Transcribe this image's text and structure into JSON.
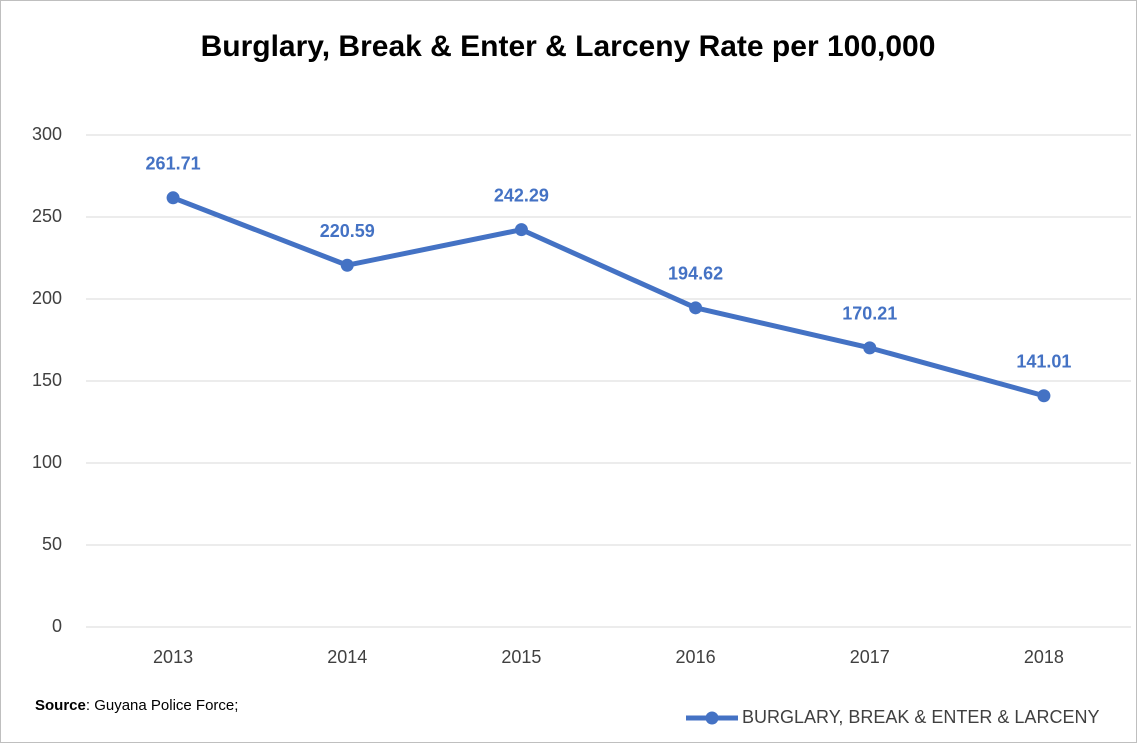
{
  "chart_data": {
    "type": "line",
    "title": "Burglary, Break & Enter & Larceny Rate per 100,000",
    "categories": [
      "2013",
      "2014",
      "2015",
      "2016",
      "2017",
      "2018"
    ],
    "series": [
      {
        "name": "BURGLARY, BREAK & ENTER & LARCENY",
        "color": "#4472c4",
        "values": [
          261.71,
          220.59,
          242.29,
          194.62,
          170.21,
          141.01
        ]
      }
    ],
    "ylim": [
      0,
      300
    ],
    "yticks": [
      0,
      50,
      100,
      150,
      200,
      250,
      300
    ],
    "grid": true,
    "legend": "bottom-right",
    "source_label": "Source",
    "source_text": ": Guyana Police Force;"
  }
}
